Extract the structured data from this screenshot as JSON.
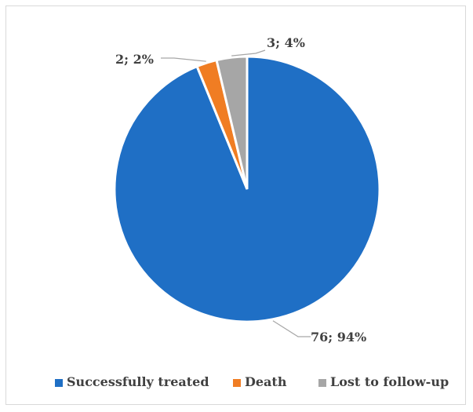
{
  "chart_data": {
    "type": "pie",
    "title": "",
    "categories": [
      "Successfully treated",
      "Death",
      "Lost to follow-up"
    ],
    "values": [
      76,
      2,
      3
    ],
    "percents": [
      94,
      2,
      4
    ],
    "data_labels": [
      "76; 94%",
      "2; 2%",
      "3; 4%"
    ],
    "colors": [
      "#1f6fc5",
      "#f07d23",
      "#a6a6a6"
    ],
    "start_angle": "top",
    "direction": "clockwise",
    "legend_placement": "bottom"
  }
}
